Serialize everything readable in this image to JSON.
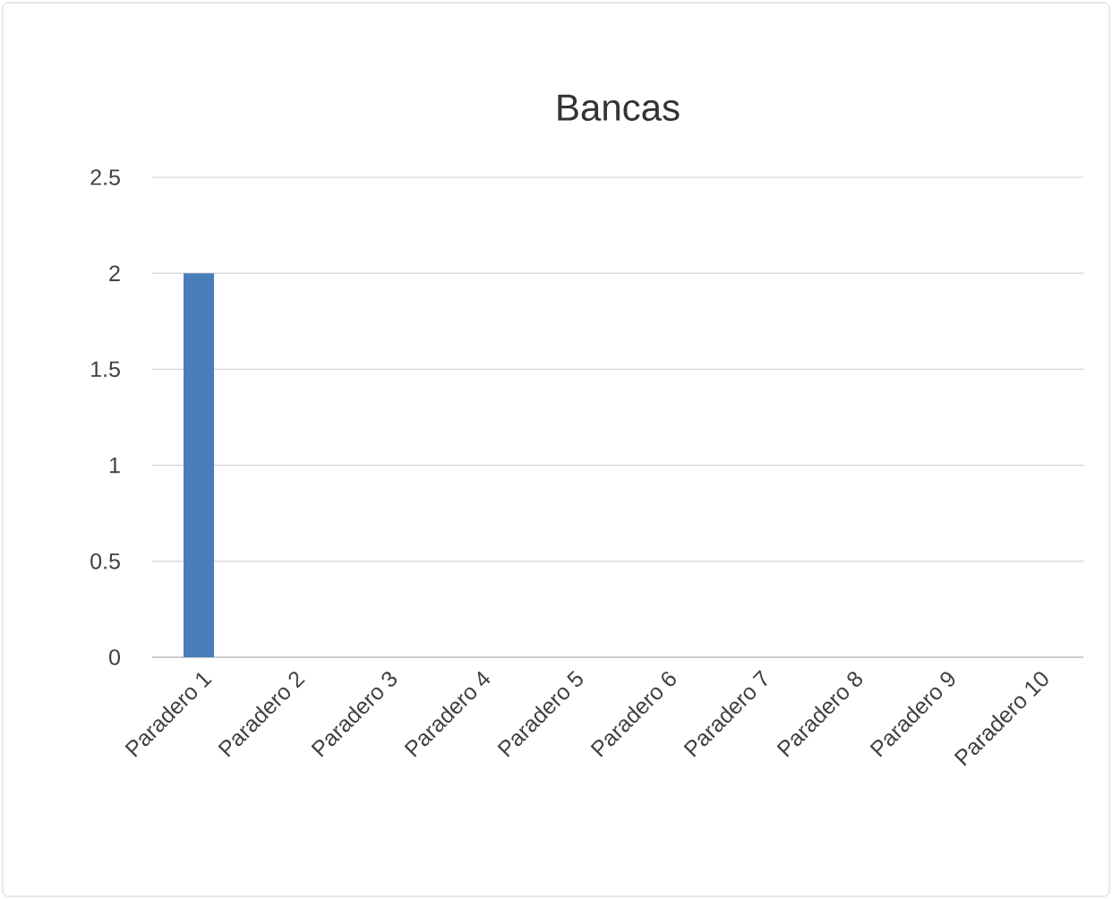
{
  "chart_data": {
    "type": "bar",
    "title": "Bancas",
    "categories": [
      "Paradero 1",
      "Paradero 2",
      "Paradero 3",
      "Paradero 4",
      "Paradero 5",
      "Paradero 6",
      "Paradero 7",
      "Paradero 8",
      "Paradero 9",
      "Paradero 10"
    ],
    "values": [
      2,
      0,
      0,
      0,
      0,
      0,
      0,
      0,
      0,
      0
    ],
    "color": "#4a7ebb",
    "ylim": [
      0,
      2.5
    ],
    "yticks": [
      0,
      0.5,
      1,
      1.5,
      2,
      2.5
    ],
    "grid": "y"
  }
}
